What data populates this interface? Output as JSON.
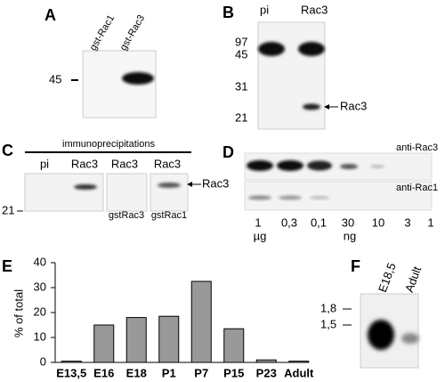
{
  "panels": {
    "A": {
      "label": "A",
      "lanes": [
        "gst-Rac1",
        "gst-Rac3"
      ],
      "markers": [
        "45"
      ]
    },
    "B": {
      "label": "B",
      "lanes": [
        "pi",
        "Rac3"
      ],
      "markers": [
        "97",
        "45",
        "31",
        "21"
      ],
      "arrow": "Rac3"
    },
    "C": {
      "label": "C",
      "header": "immunoprecipitations",
      "lanes": [
        "pi",
        "Rac3",
        "Rac3",
        "Rac3"
      ],
      "competitors": [
        "gstRac3",
        "gstRac1"
      ],
      "markers": [
        "21"
      ],
      "arrow": "Rac3"
    },
    "D": {
      "label": "D",
      "antibodies": [
        "anti-Rac3",
        "anti-Rac1"
      ],
      "amounts": [
        "1",
        "0,3",
        "0,1",
        "30",
        "10",
        "3",
        "1"
      ],
      "units": [
        "µg",
        "ng"
      ]
    },
    "F": {
      "label": "F",
      "lanes": [
        "E18,5",
        "Adult"
      ],
      "markers": [
        "1,8",
        "1,5"
      ]
    }
  },
  "chart_data": {
    "type": "bar",
    "panel_label": "E",
    "y_label": "% of total",
    "categories": [
      "E13,5",
      "E16",
      "E18",
      "P1",
      "P7",
      "P15",
      "P23",
      "Adult"
    ],
    "values": [
      0.5,
      15,
      18,
      18.5,
      32.5,
      13.5,
      1,
      0.5
    ],
    "color": "#999999",
    "ylim": [
      0,
      40
    ],
    "yticks": [
      0,
      10,
      20,
      30,
      40
    ]
  }
}
